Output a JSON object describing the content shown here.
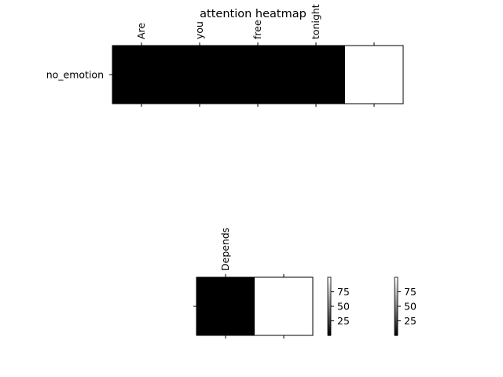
{
  "chart_data": [
    {
      "type": "heatmap",
      "title": "attention heatmap",
      "x_tick_labels": [
        "Are",
        "you",
        "free",
        "tonight",
        ""
      ],
      "y_tick_labels": [
        "no_emotion"
      ],
      "values": [
        [
          0,
          0,
          0,
          0,
          100
        ]
      ],
      "colormap": "gray",
      "grid": false
    },
    {
      "type": "heatmap",
      "title": "",
      "x_tick_labels": [
        "Depends",
        ""
      ],
      "y_tick_labels": [
        ""
      ],
      "values": [
        [
          0,
          100
        ]
      ],
      "colormap": "gray",
      "grid": false
    }
  ],
  "colorbars": [
    {
      "ticks": [
        25,
        50,
        75
      ],
      "tick_labels": [
        "25",
        "50",
        "75"
      ],
      "range": [
        0,
        100
      ],
      "colormap": "gray"
    },
    {
      "ticks": [
        25,
        50,
        75
      ],
      "tick_labels": [
        "25",
        "50",
        "75"
      ],
      "range": [
        0,
        100
      ],
      "colormap": "gray"
    }
  ]
}
